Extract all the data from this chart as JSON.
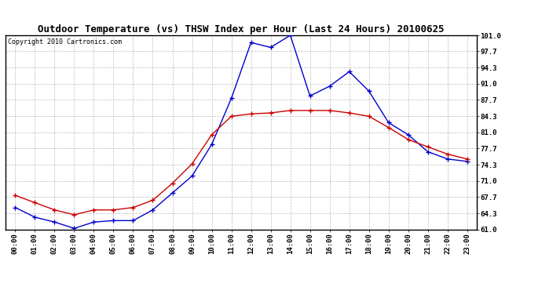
{
  "title": "Outdoor Temperature (vs) THSW Index per Hour (Last 24 Hours) 20100625",
  "copyright": "Copyright 2010 Cartronics.com",
  "hours": [
    0,
    1,
    2,
    3,
    4,
    5,
    6,
    7,
    8,
    9,
    10,
    11,
    12,
    13,
    14,
    15,
    16,
    17,
    18,
    19,
    20,
    21,
    22,
    23
  ],
  "blue_data": [
    65.5,
    63.5,
    62.5,
    61.2,
    62.5,
    62.8,
    62.8,
    65.0,
    68.5,
    72.0,
    78.5,
    88.0,
    99.5,
    98.5,
    101.0,
    88.5,
    90.5,
    93.5,
    89.5,
    83.0,
    80.5,
    77.0,
    75.5,
    75.0
  ],
  "red_data": [
    68.0,
    66.5,
    65.0,
    64.0,
    65.0,
    65.0,
    65.5,
    67.0,
    70.5,
    74.5,
    80.5,
    84.3,
    84.8,
    85.0,
    85.5,
    85.5,
    85.5,
    85.0,
    84.3,
    82.0,
    79.5,
    78.0,
    76.5,
    75.5
  ],
  "ylim": [
    61.0,
    101.0
  ],
  "yticks": [
    61.0,
    64.3,
    67.7,
    71.0,
    74.3,
    77.7,
    81.0,
    84.3,
    87.7,
    91.0,
    94.3,
    97.7,
    101.0
  ],
  "blue_color": "#0000CC",
  "red_color": "#CC0000",
  "grid_color": "#AAAAAA",
  "bg_color": "#FFFFFF",
  "title_fontsize": 9,
  "copyright_fontsize": 6,
  "tick_fontsize": 6.5,
  "ytick_fontsize": 6.5
}
